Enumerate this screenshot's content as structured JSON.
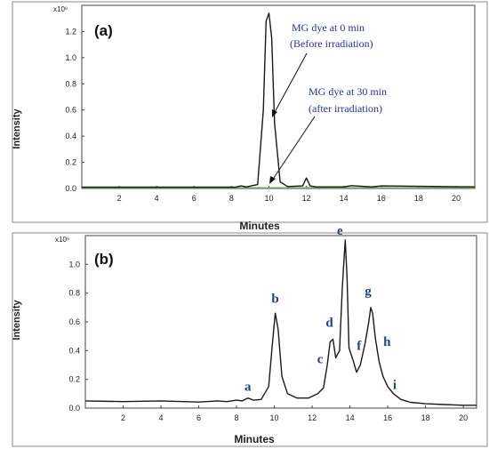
{
  "chart_data": [
    {
      "type": "line",
      "panel_label": "(a)",
      "xlabel": "Minutes",
      "ylabel": "Intensity",
      "y_multiplier": "x10⁶",
      "xlim": [
        0,
        21
      ],
      "ylim": [
        0,
        1.4
      ],
      "x_ticks": [
        2,
        4,
        6,
        8,
        10,
        12,
        14,
        16,
        18,
        20
      ],
      "y_ticks": [
        0.0,
        0.2,
        0.4,
        0.6,
        0.8,
        1.0,
        1.2
      ],
      "y_tick_labels": [
        "0.0",
        "0.2",
        "0.4",
        "0.6",
        "0.8",
        "1.0",
        "1.2"
      ],
      "series": [
        {
          "label": "MG dye at 0 min (Before irradiation)",
          "color": "#1a1a1a",
          "x": [
            0,
            8.2,
            8.5,
            8.8,
            9.4,
            9.7,
            9.85,
            10.0,
            10.15,
            10.3,
            10.6,
            11.0,
            11.8,
            12.0,
            12.2,
            12.5,
            14.0,
            14.4,
            15.5,
            16.0,
            21
          ],
          "y": [
            0.01,
            0.01,
            0.02,
            0.012,
            0.03,
            0.6,
            1.28,
            1.34,
            1.15,
            0.5,
            0.05,
            0.015,
            0.02,
            0.08,
            0.02,
            0.012,
            0.012,
            0.022,
            0.012,
            0.02,
            0.012
          ]
        },
        {
          "label": "MG dye at 30 min (after irradiation)",
          "color": "#6aa84f",
          "x": [
            0,
            21
          ],
          "y": [
            0.005,
            0.005
          ]
        }
      ],
      "annotations": [
        {
          "line1": "MG dye at 0 min",
          "line2": "(Before irradiation)"
        },
        {
          "line1": "MG dye at 30 min",
          "line2": "(after irradiation)"
        }
      ]
    },
    {
      "type": "line",
      "panel_label": "(b)",
      "xlabel": "Minutes",
      "ylabel": "Intensity",
      "y_multiplier": "x10⁶",
      "xlim": [
        0,
        20.7
      ],
      "ylim": [
        0,
        1.2
      ],
      "x_ticks": [
        2,
        4,
        6,
        8,
        10,
        12,
        14,
        16,
        18,
        20
      ],
      "y_ticks": [
        0.0,
        0.2,
        0.4,
        0.6,
        0.8,
        1.0
      ],
      "y_tick_labels": [
        "0.0",
        "0.2",
        "0.4",
        "0.6",
        "0.8",
        "1.0"
      ],
      "series": [
        {
          "color": "#1a1a1a",
          "x": [
            0,
            2,
            4,
            6,
            7,
            7.5,
            8.0,
            8.3,
            8.6,
            8.9,
            9.3,
            9.7,
            9.9,
            10.05,
            10.2,
            10.4,
            10.7,
            11.2,
            11.8,
            12.3,
            12.6,
            12.8,
            12.95,
            13.1,
            13.25,
            13.45,
            13.6,
            13.75,
            13.85,
            13.95,
            14.05,
            14.2,
            14.35,
            14.55,
            14.8,
            15.0,
            15.1,
            15.2,
            15.35,
            15.55,
            15.75,
            16.0,
            16.3,
            16.7,
            17.2,
            18,
            19,
            20,
            20.7
          ],
          "y": [
            0.05,
            0.045,
            0.05,
            0.042,
            0.05,
            0.045,
            0.055,
            0.05,
            0.07,
            0.055,
            0.06,
            0.15,
            0.45,
            0.66,
            0.55,
            0.22,
            0.1,
            0.07,
            0.07,
            0.1,
            0.14,
            0.3,
            0.46,
            0.48,
            0.35,
            0.4,
            0.85,
            1.17,
            0.9,
            0.42,
            0.38,
            0.32,
            0.25,
            0.3,
            0.45,
            0.6,
            0.7,
            0.66,
            0.48,
            0.32,
            0.22,
            0.15,
            0.1,
            0.06,
            0.04,
            0.03,
            0.025,
            0.02,
            0.02
          ]
        }
      ],
      "peaks": [
        {
          "label": "a",
          "x": 8.6,
          "y": 0.07
        },
        {
          "label": "b",
          "x": 10.05,
          "y": 0.66
        },
        {
          "label": "c",
          "x": 12.8,
          "y": 0.3
        },
        {
          "label": "d",
          "x": 13.1,
          "y": 0.48
        },
        {
          "label": "e",
          "x": 13.75,
          "y": 1.17
        },
        {
          "label": "f",
          "x": 14.1,
          "y": 0.38
        },
        {
          "label": "g",
          "x": 15.1,
          "y": 0.7
        },
        {
          "label": "h",
          "x": 15.4,
          "y": 0.42
        },
        {
          "label": "i",
          "x": 15.9,
          "y": 0.17
        }
      ]
    }
  ]
}
